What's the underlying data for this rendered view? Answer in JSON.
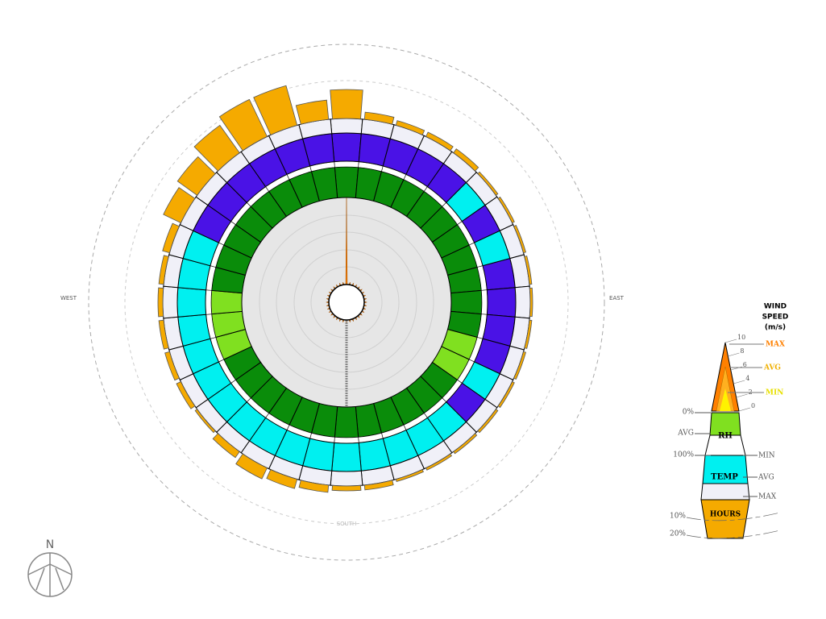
{
  "chart_data": {
    "type": "windrose",
    "direction_labels": {
      "west": "WEST",
      "east": "EAST",
      "south": "SOUTH",
      "north": "N"
    },
    "hours": [
      12,
      3,
      2,
      2,
      2,
      1,
      1,
      1,
      1,
      1,
      1,
      1,
      1,
      1,
      1,
      1,
      1,
      2,
      2,
      3,
      4,
      5,
      3,
      1,
      2,
      2,
      2,
      2,
      2,
      3,
      8,
      10,
      14,
      17,
      17,
      8
    ],
    "hours_color": "#f5aa00",
    "hours_lim": [
      0,
      20
    ],
    "hours_ticks": [
      {
        "value": 10,
        "label": "10%"
      },
      {
        "value": 20,
        "label": "20%"
      }
    ],
    "temp_colors": [
      "#4a12e6",
      "#4a12e6",
      "#4a12e6",
      "#4a12e6",
      "#4a12e6",
      "#00f0f0",
      "#4a12e6",
      "#00f0f0",
      "#4a12e6",
      "#4a12e6",
      "#4a12e6",
      "#4a12e6",
      "#00f0f0",
      "#4a12e6",
      "#00f0f0",
      "#00f0f0",
      "#00f0f0",
      "#00f0f0",
      "#00f0f0",
      "#00f0f0",
      "#00f0f0",
      "#00f0f0",
      "#00f0f0",
      "#00f0f0",
      "#00f0f0",
      "#00f0f0",
      "#00f0f0",
      "#00f0f0",
      "#00f0f0",
      "#00f0f0",
      "#4a12e6",
      "#4a12e6",
      "#4a12e6",
      "#4a12e6",
      "#4a12e6",
      "#4a12e6"
    ],
    "rh_colors": [
      "#0a8c0a",
      "#0a8c0a",
      "#0a8c0a",
      "#0a8c0a",
      "#0a8c0a",
      "#0a8c0a",
      "#0a8c0a",
      "#0a8c0a",
      "#0a8c0a",
      "#0a8c0a",
      "#0a8c0a",
      "#80e020",
      "#80e020",
      "#0a8c0a",
      "#0a8c0a",
      "#0a8c0a",
      "#0a8c0a",
      "#0a8c0a",
      "#0a8c0a",
      "#0a8c0a",
      "#0a8c0a",
      "#0a8c0a",
      "#0a8c0a",
      "#0a8c0a",
      "#0a8c0a",
      "#80e020",
      "#80e020",
      "#80e020",
      "#0a8c0a",
      "#0a8c0a",
      "#0a8c0a",
      "#0a8c0a",
      "#0a8c0a",
      "#0a8c0a",
      "#0a8c0a",
      "#0a8c0a"
    ],
    "wind": [
      10,
      0.3,
      0.3,
      0.3,
      0.3,
      0.3,
      0.3,
      0.3,
      0.3,
      0.3,
      0.3,
      0.3,
      0.3,
      0.3,
      0.3,
      0.3,
      0.3,
      0.3,
      0.3,
      0.3,
      0.3,
      0.3,
      0.3,
      0.3,
      0.3,
      0.3,
      0.3,
      0.3,
      0.3,
      0.3,
      0.3,
      0.3,
      0.3,
      0.3,
      0.3,
      0.3
    ],
    "wind_color": "#ff8000",
    "wind_lim": [
      0,
      10
    ],
    "wind_ticks": [
      10,
      8,
      6,
      4,
      2,
      0
    ],
    "legend": {
      "title": [
        "WIND",
        "SPEED",
        "(m/s)"
      ],
      "wind_max": "MAX",
      "wind_avg": "AVG",
      "wind_min": "MIN",
      "rh_low": "0%",
      "rh_avg": "AVG",
      "rh": "RH",
      "rh_high": "100%",
      "temp_min": "MIN",
      "temp": "TEMP",
      "temp_avg": "AVG",
      "temp_max": "MAX",
      "hours": "HOURS"
    }
  }
}
